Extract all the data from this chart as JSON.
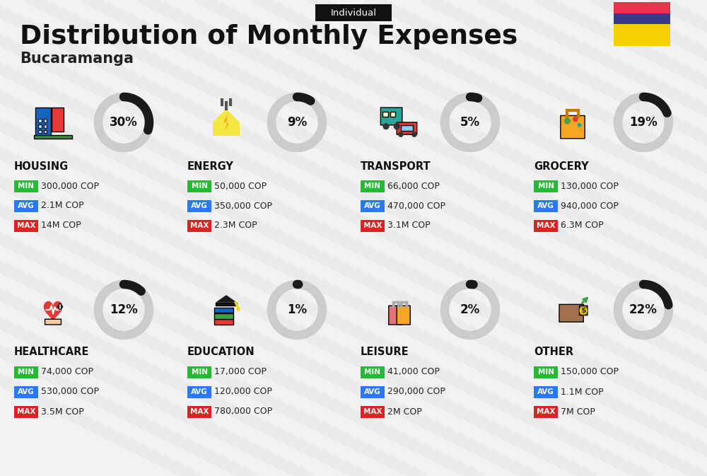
{
  "title": "Distribution of Monthly Expenses",
  "subtitle": "Bucaramanga",
  "tag": "Individual",
  "bg_color": "#f2f2f4",
  "categories": [
    {
      "name": "HOUSING",
      "percent": 30,
      "min": "300,000 COP",
      "avg": "2.1M COP",
      "max": "14M COP",
      "row": 0,
      "col": 0
    },
    {
      "name": "ENERGY",
      "percent": 9,
      "min": "50,000 COP",
      "avg": "350,000 COP",
      "max": "2.3M COP",
      "row": 0,
      "col": 1
    },
    {
      "name": "TRANSPORT",
      "percent": 5,
      "min": "66,000 COP",
      "avg": "470,000 COP",
      "max": "3.1M COP",
      "row": 0,
      "col": 2
    },
    {
      "name": "GROCERY",
      "percent": 19,
      "min": "130,000 COP",
      "avg": "940,000 COP",
      "max": "6.3M COP",
      "row": 0,
      "col": 3
    },
    {
      "name": "HEALTHCARE",
      "percent": 12,
      "min": "74,000 COP",
      "avg": "530,000 COP",
      "max": "3.5M COP",
      "row": 1,
      "col": 0
    },
    {
      "name": "EDUCATION",
      "percent": 1,
      "min": "17,000 COP",
      "avg": "120,000 COP",
      "max": "780,000 COP",
      "row": 1,
      "col": 1
    },
    {
      "name": "LEISURE",
      "percent": 2,
      "min": "41,000 COP",
      "avg": "290,000 COP",
      "max": "2M COP",
      "row": 1,
      "col": 2
    },
    {
      "name": "OTHER",
      "percent": 22,
      "min": "150,000 COP",
      "avg": "1.1M COP",
      "max": "7M COP",
      "row": 1,
      "col": 3
    }
  ],
  "color_min": "#22bb33",
  "color_avg": "#2979ff",
  "color_max": "#dd2222",
  "arc_dark": "#1a1a1a",
  "arc_light": "#cccccc",
  "colombia_colors": [
    "#F5D000",
    "#3A3A8C",
    "#E8334A"
  ],
  "stripe_color": "#dedede",
  "tag_bg": "#111111",
  "title_color": "#111111",
  "subtitle_color": "#222222",
  "value_color": "#222222"
}
